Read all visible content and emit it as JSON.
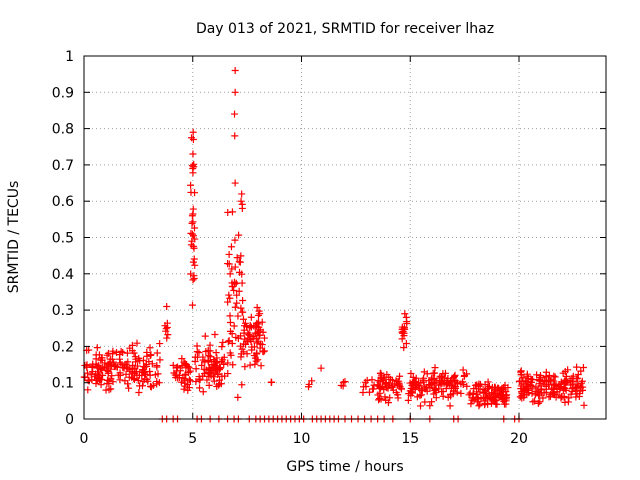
{
  "chart_data": {
    "type": "scatter",
    "title": "Day 013 of 2021, SRMTID for receiver lhaz",
    "xlabel": "GPS time / hours",
    "ylabel": "SRMTID / TECUs",
    "xlim": [
      0,
      24
    ],
    "ylim": [
      0,
      1
    ],
    "grid": true,
    "marker": "+",
    "series_color": "#ff0000",
    "x_ticks": [
      {
        "value": 0,
        "label": "0"
      },
      {
        "value": 5,
        "label": "5"
      },
      {
        "value": 10,
        "label": "10"
      },
      {
        "value": 15,
        "label": "15"
      },
      {
        "value": 20,
        "label": "20"
      }
    ],
    "y_ticks": [
      {
        "value": 0,
        "label": "0"
      },
      {
        "value": 0.1,
        "label": "0.1"
      },
      {
        "value": 0.2,
        "label": "0.2"
      },
      {
        "value": 0.3,
        "label": "0.3"
      },
      {
        "value": 0.4,
        "label": "0.4"
      },
      {
        "value": 0.5,
        "label": "0.5"
      },
      {
        "value": 0.6,
        "label": "0.6"
      },
      {
        "value": 0.7,
        "label": "0.7"
      },
      {
        "value": 0.8,
        "label": "0.8"
      },
      {
        "value": 0.9,
        "label": "0.9"
      },
      {
        "value": 1,
        "label": "1"
      }
    ],
    "clusters": [
      {
        "x_start": 0.0,
        "x_end": 3.5,
        "y_center": 0.14,
        "y_spread": 0.06,
        "count": 180
      },
      {
        "x_start": 3.7,
        "x_end": 3.9,
        "y_center": 0.25,
        "y_spread": 0.05,
        "count": 8
      },
      {
        "x_start": 4.1,
        "x_end": 4.9,
        "y_center": 0.12,
        "y_spread": 0.04,
        "count": 40
      },
      {
        "x_start": 4.9,
        "x_end": 5.1,
        "y_center": 0.55,
        "y_spread": 0.22,
        "count": 30
      },
      {
        "x_start": 5.1,
        "x_end": 6.5,
        "y_center": 0.15,
        "y_spread": 0.06,
        "count": 80
      },
      {
        "x_start": 6.6,
        "x_end": 7.3,
        "y_center": 0.35,
        "y_spread": 0.22,
        "count": 60
      },
      {
        "x_start": 7.3,
        "x_end": 8.3,
        "y_center": 0.22,
        "y_spread": 0.07,
        "count": 70
      },
      {
        "x_start": 8.5,
        "x_end": 8.7,
        "y_center": 0.1,
        "y_spread": 0.01,
        "count": 3
      },
      {
        "x_start": 10.3,
        "x_end": 10.5,
        "y_center": 0.1,
        "y_spread": 0.01,
        "count": 3
      },
      {
        "x_start": 11.8,
        "x_end": 12.0,
        "y_center": 0.1,
        "y_spread": 0.01,
        "count": 4
      },
      {
        "x_start": 12.8,
        "x_end": 13.4,
        "y_center": 0.09,
        "y_spread": 0.02,
        "count": 10
      },
      {
        "x_start": 13.5,
        "x_end": 14.6,
        "y_center": 0.09,
        "y_spread": 0.04,
        "count": 60
      },
      {
        "x_start": 14.6,
        "x_end": 14.9,
        "y_center": 0.24,
        "y_spread": 0.05,
        "count": 15
      },
      {
        "x_start": 14.9,
        "x_end": 17.0,
        "y_center": 0.09,
        "y_spread": 0.04,
        "count": 110
      },
      {
        "x_start": 17.0,
        "x_end": 17.6,
        "y_center": 0.1,
        "y_spread": 0.03,
        "count": 20
      },
      {
        "x_start": 17.7,
        "x_end": 19.5,
        "y_center": 0.07,
        "y_spread": 0.03,
        "count": 100
      },
      {
        "x_start": 20.0,
        "x_end": 23.0,
        "y_center": 0.09,
        "y_spread": 0.04,
        "count": 170
      }
    ],
    "outliers": [
      {
        "x": 6.95,
        "y": 0.96
      },
      {
        "x": 6.95,
        "y": 0.9
      },
      {
        "x": 6.92,
        "y": 0.84
      },
      {
        "x": 6.93,
        "y": 0.78
      },
      {
        "x": 5.02,
        "y": 0.79
      },
      {
        "x": 5.03,
        "y": 0.77
      },
      {
        "x": 5.01,
        "y": 0.73
      },
      {
        "x": 5.0,
        "y": 0.69
      },
      {
        "x": 6.95,
        "y": 0.65
      },
      {
        "x": 7.25,
        "y": 0.62
      },
      {
        "x": 7.22,
        "y": 0.6
      },
      {
        "x": 7.28,
        "y": 0.58
      },
      {
        "x": 10.9,
        "y": 0.14
      },
      {
        "x": 14.75,
        "y": 0.29
      },
      {
        "x": 14.82,
        "y": 0.28
      }
    ],
    "zero_values_x": [
      3.6,
      3.8,
      4.1,
      4.3,
      5.2,
      5.4,
      5.8,
      6.2,
      6.6,
      6.9,
      7.1,
      7.6,
      7.9,
      8.1,
      8.3,
      8.5,
      8.7,
      8.9,
      9.1,
      9.3,
      9.5,
      9.7,
      9.9,
      10.1,
      10.5,
      10.7,
      10.9,
      11.1,
      11.3,
      11.5,
      11.7,
      12.0,
      12.3,
      12.6,
      12.9,
      13.2,
      13.5,
      13.8,
      14.2,
      15.0,
      15.9,
      17.0,
      17.2,
      19.3,
      19.8,
      20.0
    ],
    "seed": 13
  }
}
